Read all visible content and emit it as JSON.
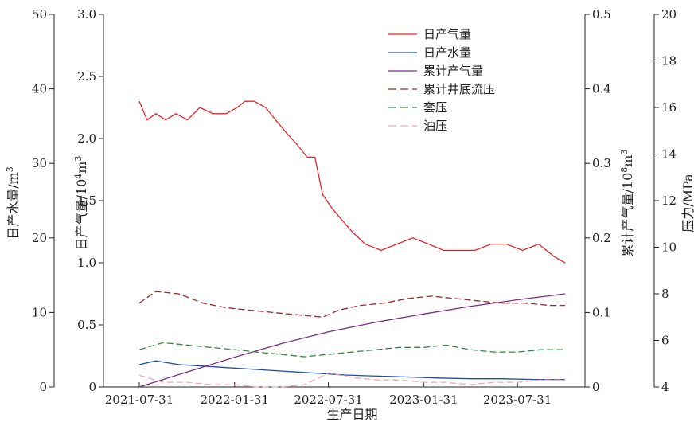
{
  "chart_data": {
    "type": "line",
    "xlabel": "生产日期",
    "x_ticks": [
      "2021-07-31",
      "2022-01-31",
      "2022-07-31",
      "2023-01-31",
      "2023-07-31"
    ],
    "axes": {
      "water": {
        "label": "日产水量/m³",
        "label_main": "日产水量/m",
        "label_sup": "3",
        "ylim": [
          0,
          50
        ],
        "ticks": [
          "0",
          "10",
          "20",
          "30",
          "40",
          "50"
        ]
      },
      "gas": {
        "label": "日产气量/10⁴m³",
        "label_main": "日产气量/10",
        "label_sup": "4",
        "label_unit": "m",
        "label_sup2": "3",
        "ylim": [
          0,
          3.0
        ],
        "ticks": [
          "0",
          "0.5",
          "1.0",
          "1.5",
          "2.0",
          "2.5",
          "3.0"
        ]
      },
      "cum": {
        "label": "累计产气量/10⁸m³",
        "label_main": "累计产气量/10",
        "label_sup": "8",
        "label_unit": "m",
        "label_sup2": "3",
        "ylim": [
          0,
          0.5
        ],
        "ticks": [
          "0",
          "0.1",
          "0.2",
          "0.3",
          "0.4",
          "0.5"
        ]
      },
      "press": {
        "label": "压力/MPa",
        "ylim": [
          4,
          20
        ],
        "ticks": [
          "4",
          "6",
          "8",
          "10",
          "12",
          "14",
          "16",
          "18",
          "20"
        ]
      }
    },
    "legend": {
      "position": "top-center"
    },
    "series": [
      {
        "name": "日产气量",
        "axis": "gas",
        "color": "#e8252a",
        "dash": "",
        "points": [
          [
            "2021-07-31",
            2.3
          ],
          [
            "2021-08-15",
            2.15
          ],
          [
            "2021-09-01",
            2.2
          ],
          [
            "2021-09-20",
            2.15
          ],
          [
            "2021-10-10",
            2.2
          ],
          [
            "2021-11-01",
            2.15
          ],
          [
            "2021-11-25",
            2.25
          ],
          [
            "2021-12-20",
            2.2
          ],
          [
            "2022-01-15",
            2.2
          ],
          [
            "2022-02-05",
            2.25
          ],
          [
            "2022-02-20",
            2.3
          ],
          [
            "2022-03-10",
            2.3
          ],
          [
            "2022-04-01",
            2.25
          ],
          [
            "2022-04-20",
            2.15
          ],
          [
            "2022-05-10",
            2.05
          ],
          [
            "2022-06-01",
            1.95
          ],
          [
            "2022-06-20",
            1.85
          ],
          [
            "2022-07-05",
            1.85
          ],
          [
            "2022-07-20",
            1.55
          ],
          [
            "2022-08-05",
            1.45
          ],
          [
            "2022-08-25",
            1.35
          ],
          [
            "2022-09-15",
            1.25
          ],
          [
            "2022-10-10",
            1.15
          ],
          [
            "2022-11-10",
            1.1
          ],
          [
            "2022-12-10",
            1.15
          ],
          [
            "2023-01-10",
            1.2
          ],
          [
            "2023-02-10",
            1.15
          ],
          [
            "2023-03-10",
            1.1
          ],
          [
            "2023-04-10",
            1.1
          ],
          [
            "2023-05-10",
            1.1
          ],
          [
            "2023-06-10",
            1.15
          ],
          [
            "2023-07-10",
            1.15
          ],
          [
            "2023-08-10",
            1.1
          ],
          [
            "2023-09-10",
            1.15
          ],
          [
            "2023-10-10",
            1.05
          ],
          [
            "2023-10-31",
            1.0
          ]
        ]
      },
      {
        "name": "日产水量",
        "axis": "water",
        "color": "#1f4ea8",
        "dash": "",
        "points": [
          [
            "2021-07-31",
            3
          ],
          [
            "2021-09-01",
            3.5
          ],
          [
            "2021-10-15",
            3.0
          ],
          [
            "2021-12-01",
            2.8
          ],
          [
            "2022-01-15",
            2.6
          ],
          [
            "2022-03-01",
            2.4
          ],
          [
            "2022-04-15",
            2.2
          ],
          [
            "2022-06-01",
            2.0
          ],
          [
            "2022-07-20",
            1.8
          ],
          [
            "2022-09-01",
            1.6
          ],
          [
            "2022-10-15",
            1.5
          ],
          [
            "2022-12-01",
            1.4
          ],
          [
            "2023-01-15",
            1.3
          ],
          [
            "2023-03-01",
            1.2
          ],
          [
            "2023-05-01",
            1.1
          ],
          [
            "2023-07-01",
            1.1
          ],
          [
            "2023-09-01",
            1.0
          ],
          [
            "2023-10-31",
            1.0
          ]
        ]
      },
      {
        "name": "累计产气量",
        "axis": "cum",
        "color": "#7b2a88",
        "dash": "",
        "points": [
          [
            "2021-07-31",
            0.0
          ],
          [
            "2021-10-31",
            0.02
          ],
          [
            "2022-01-31",
            0.04
          ],
          [
            "2022-04-30",
            0.058
          ],
          [
            "2022-07-31",
            0.074
          ],
          [
            "2022-10-31",
            0.087
          ],
          [
            "2023-01-31",
            0.098
          ],
          [
            "2023-04-30",
            0.108
          ],
          [
            "2023-07-31",
            0.117
          ],
          [
            "2023-10-31",
            0.125
          ]
        ]
      },
      {
        "name": "累计井底流压",
        "axis": "press",
        "color": "#9e2a2a",
        "dash": "8,4",
        "points": [
          [
            "2021-07-31",
            7.6
          ],
          [
            "2021-09-01",
            8.1
          ],
          [
            "2021-10-15",
            8.0
          ],
          [
            "2021-12-01",
            7.6
          ],
          [
            "2022-01-15",
            7.4
          ],
          [
            "2022-03-01",
            7.3
          ],
          [
            "2022-04-15",
            7.2
          ],
          [
            "2022-06-01",
            7.1
          ],
          [
            "2022-07-20",
            7.0
          ],
          [
            "2022-08-20",
            7.3
          ],
          [
            "2022-10-01",
            7.5
          ],
          [
            "2022-11-15",
            7.6
          ],
          [
            "2023-01-01",
            7.8
          ],
          [
            "2023-02-15",
            7.9
          ],
          [
            "2023-04-01",
            7.8
          ],
          [
            "2023-05-15",
            7.7
          ],
          [
            "2023-07-01",
            7.6
          ],
          [
            "2023-08-15",
            7.6
          ],
          [
            "2023-10-01",
            7.5
          ],
          [
            "2023-10-31",
            7.5
          ]
        ]
      },
      {
        "name": "套压",
        "axis": "press",
        "color": "#2f8a3a",
        "dash": "8,4",
        "points": [
          [
            "2021-07-31",
            5.6
          ],
          [
            "2021-09-15",
            5.9
          ],
          [
            "2021-11-01",
            5.8
          ],
          [
            "2021-12-15",
            5.7
          ],
          [
            "2022-02-01",
            5.6
          ],
          [
            "2022-03-15",
            5.5
          ],
          [
            "2022-05-01",
            5.4
          ],
          [
            "2022-06-15",
            5.3
          ],
          [
            "2022-08-01",
            5.4
          ],
          [
            "2022-09-15",
            5.5
          ],
          [
            "2022-11-01",
            5.6
          ],
          [
            "2022-12-15",
            5.7
          ],
          [
            "2023-02-01",
            5.7
          ],
          [
            "2023-03-15",
            5.8
          ],
          [
            "2023-05-01",
            5.6
          ],
          [
            "2023-06-15",
            5.5
          ],
          [
            "2023-08-01",
            5.5
          ],
          [
            "2023-09-15",
            5.6
          ],
          [
            "2023-10-31",
            5.6
          ]
        ]
      },
      {
        "name": "油压",
        "axis": "press",
        "color": "#f2a7bd",
        "dash": "8,4",
        "points": [
          [
            "2021-07-31",
            4.5
          ],
          [
            "2021-09-15",
            4.2
          ],
          [
            "2021-11-01",
            4.2
          ],
          [
            "2021-12-15",
            4.1
          ],
          [
            "2022-02-01",
            4.1
          ],
          [
            "2022-03-15",
            4.0
          ],
          [
            "2022-05-01",
            4.0
          ],
          [
            "2022-06-15",
            4.1
          ],
          [
            "2022-08-01",
            4.6
          ],
          [
            "2022-09-15",
            4.4
          ],
          [
            "2022-11-01",
            4.3
          ],
          [
            "2022-12-15",
            4.3
          ],
          [
            "2023-02-01",
            4.2
          ],
          [
            "2023-03-15",
            4.2
          ],
          [
            "2023-05-01",
            4.1
          ],
          [
            "2023-06-15",
            4.2
          ],
          [
            "2023-08-01",
            4.2
          ],
          [
            "2023-09-15",
            4.3
          ],
          [
            "2023-10-31",
            4.3
          ]
        ]
      }
    ]
  }
}
